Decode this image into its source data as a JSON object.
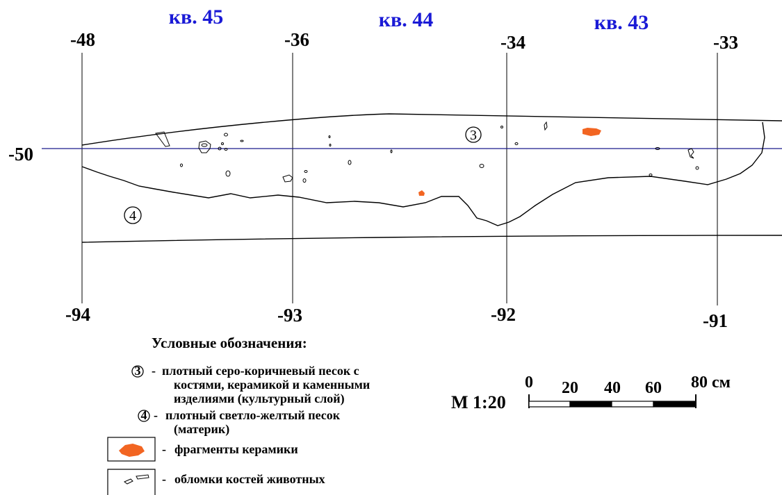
{
  "squares": [
    "кв. 45",
    "кв. 44",
    "кв. 43"
  ],
  "top_ticks": [
    "-48",
    "-36",
    "-34",
    "-33"
  ],
  "bottom_ticks": [
    "-94",
    "-93",
    "-92",
    "-91"
  ],
  "left_tick": "-50",
  "layer_markers": {
    "layer3": "3",
    "layer4": "4"
  },
  "legend": {
    "title": "Условные обозначения:",
    "item3_dash": "-",
    "item3_lines": [
      "плотный серо-коричневый песок с",
      "костями, керамикой и каменными",
      "изделиями (культурный слой)"
    ],
    "item4_dash": "-",
    "item4_lines": [
      "плотный светло-желтый песок",
      "(материк)"
    ],
    "ceramics_dash": "-",
    "ceramics_label": "фрагменты керамики",
    "bones_dash": "-",
    "bones_label": "обломки костей животных"
  },
  "scale": {
    "label": "М 1:20",
    "marks": [
      "0",
      "20",
      "40",
      "60",
      "80 см"
    ]
  },
  "colors": {
    "square_label": "#1a1ad6",
    "datum_line": "#1a1a8c",
    "ceramics": "#f26522",
    "ink": "#000000"
  }
}
